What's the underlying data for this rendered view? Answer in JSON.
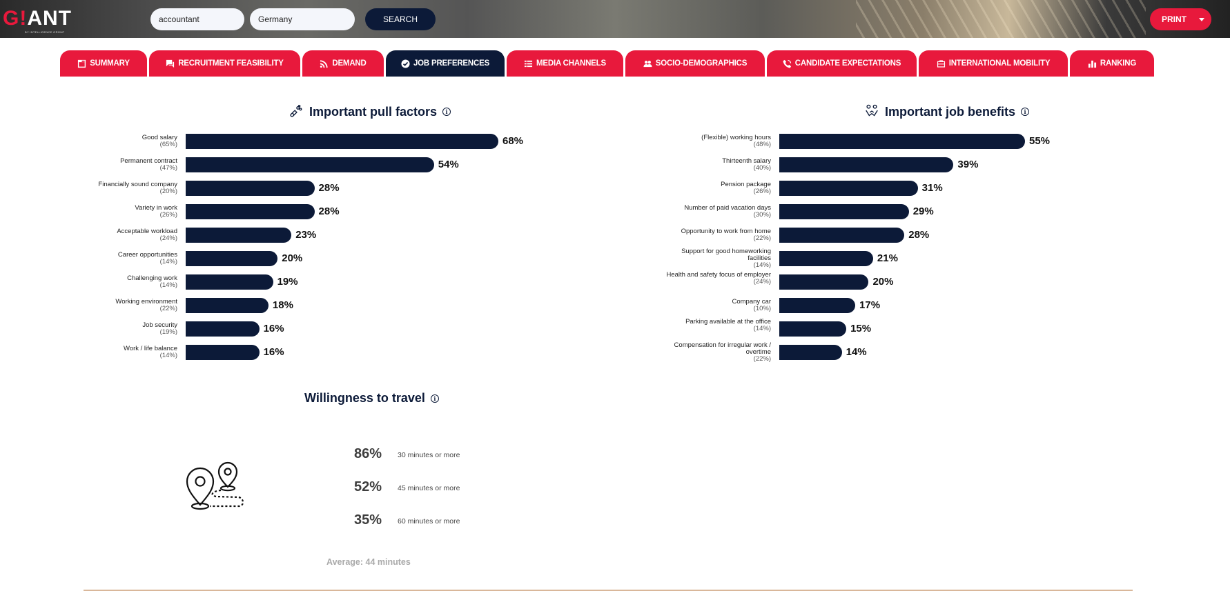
{
  "header": {
    "logo": {
      "g": "G",
      "exclaim": "!",
      "rest": "ANT",
      "subtitle": "BY INTELLIGENCE GROUP"
    },
    "search": {
      "job_value": "accountant",
      "country_value": "Germany",
      "button_label": "SEARCH"
    },
    "print_label": "PRINT"
  },
  "tabs": [
    {
      "label": "SUMMARY",
      "icon": "summary-icon",
      "active": false
    },
    {
      "label": "RECRUITMENT FEASIBILITY",
      "icon": "chat-icon",
      "active": false
    },
    {
      "label": "DEMAND",
      "icon": "rss-icon",
      "active": false
    },
    {
      "label": "JOB PREFERENCES",
      "icon": "check-circle-icon",
      "active": true
    },
    {
      "label": "MEDIA CHANNELS",
      "icon": "grid-list-icon",
      "active": false
    },
    {
      "label": "SOCIO-DEMOGRAPHICS",
      "icon": "users-icon",
      "active": false
    },
    {
      "label": "CANDIDATE EXPECTATIONS",
      "icon": "phone-icon",
      "active": false
    },
    {
      "label": "INTERNATIONAL MOBILITY",
      "icon": "suitcase-icon",
      "active": false
    },
    {
      "label": "RANKING",
      "icon": "bar-chart-icon",
      "active": false
    }
  ],
  "colors": {
    "brand_red": "#e8193c",
    "navy": "#0c1a38"
  },
  "chart_data": [
    {
      "type": "bar",
      "orientation": "horizontal",
      "title": "Important pull factors",
      "categories": [
        "Good salary",
        "Permanent contract",
        "Financially sound company",
        "Variety in work",
        "Acceptable workload",
        "Career opportunities",
        "Challenging work",
        "Working environment",
        "Job security",
        "Work / life balance"
      ],
      "values": [
        68,
        54,
        28,
        28,
        23,
        20,
        19,
        18,
        16,
        16
      ],
      "labels": [
        "68%",
        "54%",
        "28%",
        "28%",
        "23%",
        "20%",
        "19%",
        "18%",
        "16%",
        "16%"
      ],
      "secondary": [
        "(65%)",
        "(47%)",
        "(20%)",
        "(26%)",
        "(24%)",
        "(14%)",
        "(14%)",
        "(22%)",
        "(19%)",
        "(14%)"
      ],
      "unit": "%"
    },
    {
      "type": "bar",
      "orientation": "horizontal",
      "title": "Important job benefits",
      "categories": [
        "(Flexible) working hours",
        "Thirteenth salary",
        "Pension package",
        "Number of paid vacation days",
        "Opportunity to work from home",
        "Support for good homeworking facilities",
        "Health and safety focus of employer",
        "Company car",
        "Parking available at the office",
        "Compensation for irregular work / overtime"
      ],
      "values": [
        55,
        39,
        31,
        29,
        28,
        21,
        20,
        17,
        15,
        14
      ],
      "labels": [
        "55%",
        "39%",
        "31%",
        "29%",
        "28%",
        "21%",
        "20%",
        "17%",
        "15%",
        "14%"
      ],
      "secondary": [
        "(48%)",
        "(40%)",
        "(26%)",
        "(30%)",
        "(22%)",
        "(14%)",
        "(24%)",
        "(10%)",
        "(14%)",
        "(22%)"
      ],
      "unit": "%"
    }
  ],
  "travel": {
    "title": "Willingness to travel",
    "rows": [
      {
        "pct": "86%",
        "desc": "30 minutes or more"
      },
      {
        "pct": "52%",
        "desc": "45 minutes or more"
      },
      {
        "pct": "35%",
        "desc": "60 minutes or more"
      }
    ],
    "average": "Average: 44 minutes"
  }
}
